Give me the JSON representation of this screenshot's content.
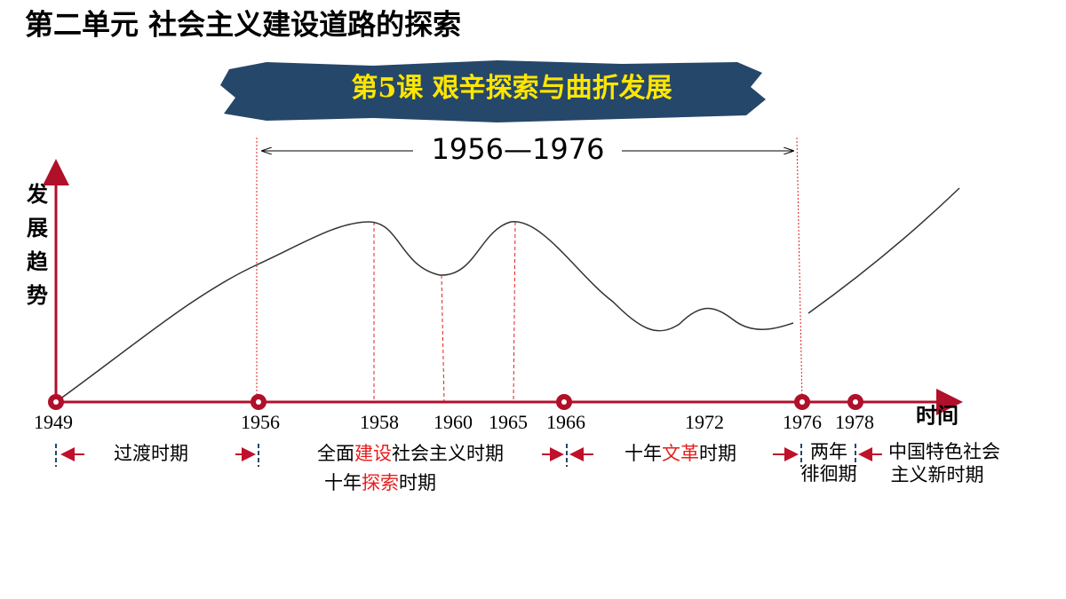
{
  "header": {
    "title": "第二单元  社会主义建设道路的探索"
  },
  "banner": {
    "title": "第5课  艰辛探索与曲折发展"
  },
  "diagram": {
    "span_label": "1956—1976",
    "y_axis_label": "发展趋势",
    "x_axis_label": "时间",
    "years": [
      "1949",
      "1956",
      "1958",
      "1960",
      "1965",
      "1966",
      "1972",
      "1976",
      "1978"
    ],
    "periods": [
      {
        "lines": [
          [
            {
              "text": "过渡时期"
            }
          ]
        ]
      },
      {
        "lines": [
          [
            {
              "text": "全面"
            },
            {
              "text": "建设",
              "highlight": true
            },
            {
              "text": "社会主义时期"
            }
          ],
          [
            {
              "text": "十年"
            },
            {
              "text": "探索",
              "highlight": true
            },
            {
              "text": "时期"
            }
          ]
        ]
      },
      {
        "lines": [
          [
            {
              "text": "十年"
            },
            {
              "text": "文革",
              "highlight": true
            },
            {
              "text": "时期"
            }
          ]
        ]
      },
      {
        "lines": [
          [
            {
              "text": "两年"
            }
          ],
          [
            {
              "text": "徘徊期"
            }
          ]
        ]
      },
      {
        "lines": [
          [
            {
              "text": "中国特色社会"
            }
          ],
          [
            {
              "text": "主义新时期"
            }
          ]
        ]
      }
    ]
  }
}
